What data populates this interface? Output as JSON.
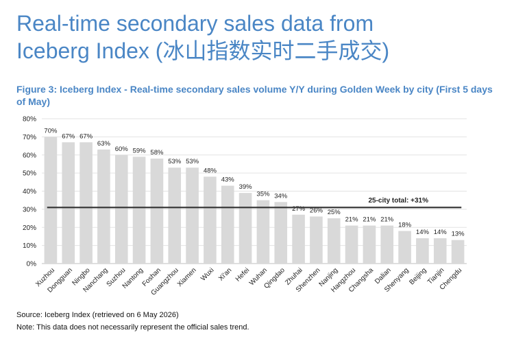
{
  "page": {
    "title_line1": "Real-time secondary sales data from",
    "title_line2": "Iceberg Index (冰山指数实时二手成交)"
  },
  "figure": {
    "caption": "Figure 3: Iceberg Index - Real-time secondary sales volume Y/Y during Golden Week by city (First 5 days of May)"
  },
  "chart_data": {
    "type": "bar",
    "title": "Figure 3: Iceberg Index - Real-time secondary sales volume Y/Y during Golden Week by city (First 5 days of May)",
    "categories": [
      "Xuzhou",
      "Dongguan",
      "Ningbo",
      "Nanchang",
      "Suzhou",
      "Nantong",
      "Foshan",
      "Guangzhou",
      "Xiamen",
      "Wuxi",
      "Xi'an",
      "Hefei",
      "Wuhan",
      "Qingdao",
      "Zhuhai",
      "Shenzhen",
      "Nanjing",
      "Hangzhou",
      "Changsha",
      "Dalian",
      "Shenyang",
      "Beijing",
      "Tianjin",
      "Chengdu"
    ],
    "values": [
      70,
      67,
      67,
      63,
      60,
      59,
      58,
      53,
      53,
      48,
      43,
      39,
      35,
      34,
      27,
      26,
      25,
      21,
      21,
      21,
      18,
      14,
      14,
      13
    ],
    "data_labels": [
      "70%",
      "67%",
      "67%",
      "63%",
      "60%",
      "59%",
      "58%",
      "53%",
      "53%",
      "48%",
      "43%",
      "39%",
      "35%",
      "34%",
      "27%",
      "26%",
      "25%",
      "21%",
      "21%",
      "21%",
      "18%",
      "14%",
      "14%",
      "13%"
    ],
    "value_unit": "%",
    "ylim": [
      0,
      80
    ],
    "yticks": [
      0,
      10,
      20,
      30,
      40,
      50,
      60,
      70,
      80
    ],
    "ytick_labels": [
      "0%",
      "10%",
      "20%",
      "30%",
      "40%",
      "50%",
      "60%",
      "70%",
      "80%"
    ],
    "reference_line": {
      "value": 31,
      "label": "25-city total: +31%"
    },
    "grid": true,
    "legend": false,
    "xlabel": "",
    "ylabel": "",
    "colors": {
      "bar": "#d9d9d9",
      "reference_line": "#3a3a3a",
      "grid": "#e3e3e3",
      "axis": "#bfbfbf",
      "title": "#4a86c5"
    }
  },
  "footer": {
    "source": "Source: Iceberg Index (retrieved on 6 May 2026)",
    "note": "Note: This data does not necessarily represent the official sales trend."
  }
}
